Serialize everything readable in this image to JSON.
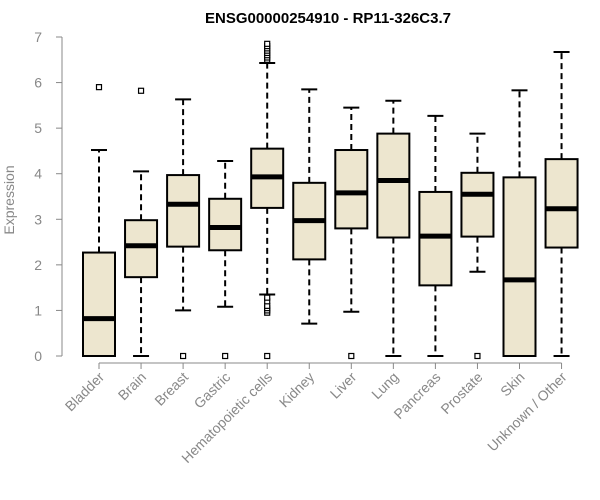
{
  "chart_data": {
    "type": "boxplot",
    "title": "ENSG00000254910 - RP11-326C3.7",
    "ylabel": "Expression",
    "xlabel": "",
    "ylim": [
      0,
      7
    ],
    "yticks": [
      0,
      1,
      2,
      3,
      4,
      5,
      6,
      7
    ],
    "colors": {
      "box_fill": "#ede6cf",
      "stroke": "#000000",
      "axis": "#888888"
    },
    "categories": [
      "Bladder",
      "Brain",
      "Breast",
      "Gastric",
      "Hematopoietic cells",
      "Kidney",
      "Liver",
      "Lung",
      "Pancreas",
      "Prostate",
      "Skin",
      "Unknown / Other"
    ],
    "boxes": [
      {
        "category": "Bladder",
        "whisker_low": 0.0,
        "q1": 0.0,
        "median": 0.82,
        "q3": 2.27,
        "whisker_high": 4.52,
        "outliers": [
          5.9
        ]
      },
      {
        "category": "Brain",
        "whisker_low": 0.0,
        "q1": 1.73,
        "median": 2.42,
        "q3": 2.98,
        "whisker_high": 4.05,
        "outliers": [
          5.82
        ]
      },
      {
        "category": "Breast",
        "whisker_low": 1.0,
        "q1": 2.4,
        "median": 3.33,
        "q3": 3.97,
        "whisker_high": 5.63,
        "outliers": [
          0.0
        ]
      },
      {
        "category": "Gastric",
        "whisker_low": 1.08,
        "q1": 2.32,
        "median": 2.82,
        "q3": 3.45,
        "whisker_high": 4.28,
        "outliers": [
          0.0
        ]
      },
      {
        "category": "Hematopoietic cells",
        "whisker_low": 1.35,
        "q1": 3.25,
        "median": 3.93,
        "q3": 4.55,
        "whisker_high": 6.43,
        "outliers": [
          0.0,
          0.95,
          1.0,
          1.05,
          1.1,
          1.2,
          1.28,
          6.5,
          6.55,
          6.6,
          6.65,
          6.7,
          6.75,
          6.8,
          6.85
        ]
      },
      {
        "category": "Kidney",
        "whisker_low": 0.71,
        "q1": 2.12,
        "median": 2.97,
        "q3": 3.8,
        "whisker_high": 5.85,
        "outliers": []
      },
      {
        "category": "Liver",
        "whisker_low": 0.97,
        "q1": 2.8,
        "median": 3.58,
        "q3": 4.52,
        "whisker_high": 5.45,
        "outliers": [
          0.0
        ]
      },
      {
        "category": "Lung",
        "whisker_low": 0.0,
        "q1": 2.6,
        "median": 3.85,
        "q3": 4.88,
        "whisker_high": 5.6,
        "outliers": []
      },
      {
        "category": "Pancreas",
        "whisker_low": 0.0,
        "q1": 1.55,
        "median": 2.63,
        "q3": 3.6,
        "whisker_high": 5.27,
        "outliers": []
      },
      {
        "category": "Prostate",
        "whisker_low": 1.85,
        "q1": 2.62,
        "median": 3.55,
        "q3": 4.02,
        "whisker_high": 4.88,
        "outliers": [
          0.0
        ]
      },
      {
        "category": "Skin",
        "whisker_low": 0.0,
        "q1": 0.0,
        "median": 1.67,
        "q3": 3.92,
        "whisker_high": 5.83,
        "outliers": []
      },
      {
        "category": "Unknown / Other",
        "whisker_low": 0.0,
        "q1": 2.38,
        "median": 3.23,
        "q3": 4.32,
        "whisker_high": 6.67,
        "outliers": []
      }
    ]
  }
}
